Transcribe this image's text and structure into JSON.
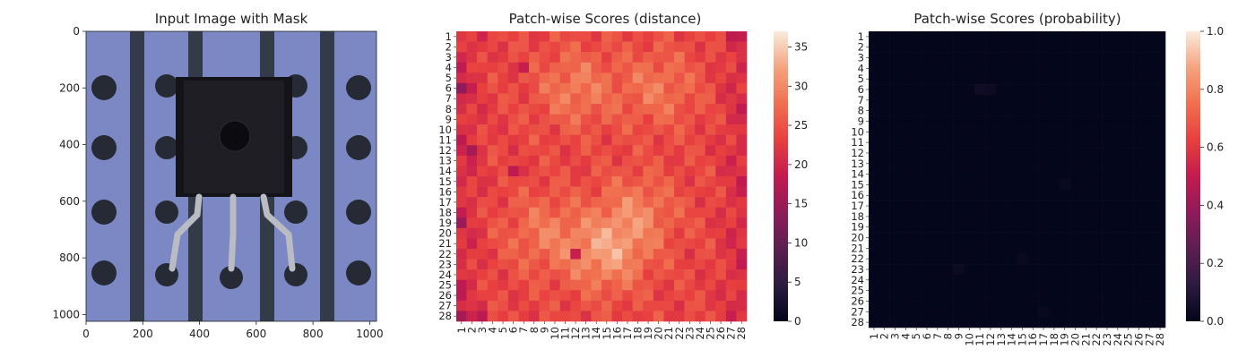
{
  "chart_data": [
    {
      "type": "image",
      "title": "Input Image with Mask",
      "xlim": [
        0,
        1024
      ],
      "ylim": [
        1024,
        0
      ],
      "xticks": [
        0,
        200,
        400,
        600,
        800,
        1000
      ],
      "yticks": [
        0,
        200,
        400,
        600,
        800,
        1000
      ],
      "xlabel": "",
      "ylabel": ""
    },
    {
      "type": "heatmap",
      "title": "Patch-wise Scores (distance)",
      "rows": 28,
      "cols": 28,
      "row_labels": [
        "1",
        "2",
        "3",
        "4",
        "5",
        "6",
        "7",
        "8",
        "9",
        "10",
        "11",
        "12",
        "13",
        "14",
        "15",
        "16",
        "17",
        "18",
        "19",
        "20",
        "21",
        "22",
        "23",
        "24",
        "25",
        "26",
        "27",
        "28"
      ],
      "col_labels": [
        "1",
        "2",
        "3",
        "4",
        "5",
        "6",
        "7",
        "8",
        "9",
        "10",
        "11",
        "12",
        "13",
        "14",
        "15",
        "16",
        "17",
        "18",
        "19",
        "20",
        "21",
        "22",
        "23",
        "24",
        "25",
        "26",
        "27",
        "28"
      ],
      "colorbar": {
        "min": 0,
        "max": 37,
        "ticks": [
          0,
          5,
          10,
          15,
          20,
          25,
          30,
          35
        ],
        "colormap": "rocket"
      },
      "value_range": [
        13,
        37
      ],
      "hotspots": [
        {
          "row": 22,
          "col": 15,
          "value": 37
        },
        {
          "row": 6,
          "col": 12,
          "value": 33
        },
        {
          "row": 6,
          "col": 20,
          "value": 32
        },
        {
          "row": 18,
          "col": 18,
          "value": 33
        },
        {
          "row": 20,
          "col": 9,
          "value": 32
        }
      ],
      "lowspots": [
        {
          "row": 6,
          "col": 1,
          "value": 14
        },
        {
          "row": 19,
          "col": 1,
          "value": 15
        },
        {
          "row": 12,
          "col": 2,
          "value": 16
        },
        {
          "row": 28,
          "col": 1,
          "value": 16
        },
        {
          "row": 14,
          "col": 6,
          "value": 18
        },
        {
          "row": 4,
          "col": 7,
          "value": 19
        },
        {
          "row": 22,
          "col": 12,
          "value": 19
        },
        {
          "row": 1,
          "col": 27,
          "value": 18
        },
        {
          "row": 25,
          "col": 1,
          "value": 18
        },
        {
          "row": 28,
          "col": 3,
          "value": 18
        }
      ]
    },
    {
      "type": "heatmap",
      "title": "Patch-wise Scores (probability)",
      "rows": 28,
      "cols": 28,
      "row_labels": [
        "1",
        "2",
        "3",
        "4",
        "5",
        "6",
        "7",
        "8",
        "9",
        "10",
        "11",
        "12",
        "13",
        "14",
        "15",
        "16",
        "17",
        "18",
        "19",
        "20",
        "21",
        "22",
        "23",
        "24",
        "25",
        "26",
        "27",
        "28"
      ],
      "col_labels": [
        "1",
        "2",
        "3",
        "4",
        "5",
        "6",
        "7",
        "8",
        "9",
        "10",
        "11",
        "12",
        "13",
        "14",
        "15",
        "16",
        "17",
        "18",
        "19",
        "20",
        "21",
        "22",
        "23",
        "24",
        "25",
        "26",
        "27",
        "28"
      ],
      "colorbar": {
        "min": 0,
        "max": 1.0,
        "ticks": [
          0.0,
          0.2,
          0.4,
          0.6,
          0.8,
          1.0
        ],
        "tick_labels": [
          "0.0",
          "0.2",
          "0.4",
          "0.6",
          "0.8",
          "1.0"
        ],
        "colormap": "rocket"
      },
      "value_range": [
        0,
        0.05
      ],
      "hotspots": [
        {
          "row": 6,
          "col": 11,
          "value": 0.04
        },
        {
          "row": 6,
          "col": 12,
          "value": 0.03
        },
        {
          "row": 23,
          "col": 9,
          "value": 0.03
        },
        {
          "row": 22,
          "col": 15,
          "value": 0.025
        },
        {
          "row": 15,
          "col": 19,
          "value": 0.02
        },
        {
          "row": 27,
          "col": 17,
          "value": 0.02
        }
      ]
    }
  ]
}
